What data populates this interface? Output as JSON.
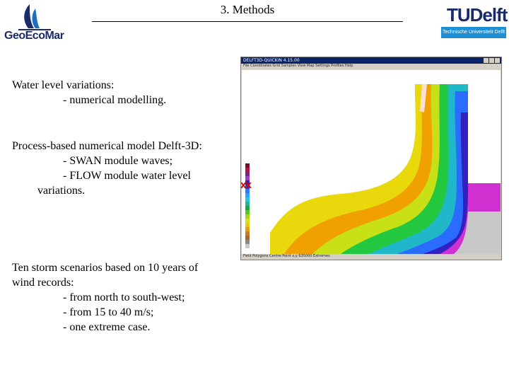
{
  "header": {
    "title": "3. Methods",
    "logo_left_text": "GeoEcoMar",
    "logo_right_text": "TUDelft",
    "logo_right_subtitle": "Technische Universiteit Delft"
  },
  "blocks": [
    {
      "lines": [
        "Water level variations:",
        "- numerical modelling."
      ]
    },
    {
      "lines": [
        "Process-based numerical model Delft-3D:",
        "- SWAN module waves;",
        "- FLOW module water level",
        "variations."
      ]
    },
    {
      "lines": [
        "Ten storm scenarios based on 10 years of",
        "wind records:",
        "- from north to south-west;",
        "- from 15 to 40 m/s;",
        "- one extreme case."
      ]
    }
  ],
  "embedded_screenshot": {
    "title": "DELFT3D-QUICKIN 4.15.00",
    "menu": "File  Coordinates  Grid  Samples  View  Map  Settings  Profiles  Help",
    "status": "Field Polygons   Centre Point   x,y   635000   Extremes",
    "corner_mark": "XX"
  },
  "legend_colors": [
    "#7a0a28",
    "#b01646",
    "#7a2288",
    "#9c3fc8",
    "#3d1fb8",
    "#2a3ed8",
    "#2f78ff",
    "#24a8ff",
    "#27c9d4",
    "#1bb892",
    "#1fa83e",
    "#5ac820",
    "#a2d21c",
    "#d8e01a",
    "#e8c812",
    "#e0a01a",
    "#c87a22",
    "#a06a3a",
    "#8a8a8a",
    "#c8c8c8"
  ]
}
